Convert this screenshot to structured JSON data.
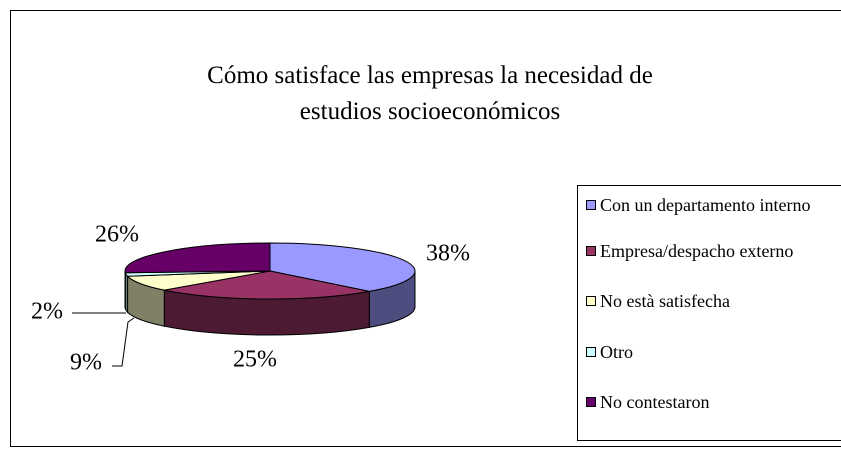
{
  "chart_data": {
    "type": "pie3d",
    "title": "Cómo satisface las empresas la necesidad de estudios socioeconómicos",
    "categories": [
      "Con un departamento interno",
      "Empresa/despacho externo",
      "No està satisfecha",
      "Otro",
      "No contestaron"
    ],
    "values": [
      38,
      25,
      9,
      2,
      26
    ],
    "value_labels": [
      "38%",
      "25%",
      "9%",
      "2%",
      "26%"
    ],
    "colors": [
      "#9999ff",
      "#993366",
      "#ffffcc",
      "#ccffff",
      "#660066"
    ],
    "legend": "right"
  }
}
